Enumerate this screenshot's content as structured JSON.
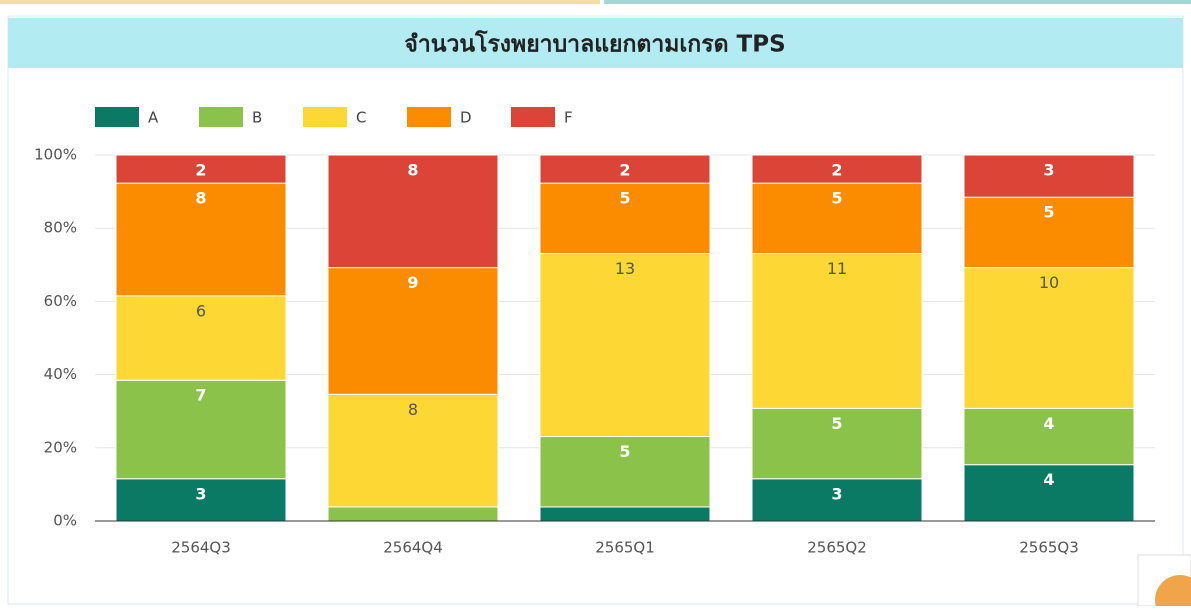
{
  "chart_data": {
    "type": "bar",
    "stacking": "percent",
    "title": "จำนวนโรงพยาบาลแยกตามเกรด TPS",
    "categories": [
      "2564Q3",
      "2564Q4",
      "2565Q1",
      "2565Q2",
      "2565Q3"
    ],
    "series": [
      {
        "name": "A",
        "color": "#0b7a64",
        "values": [
          3,
          0,
          1,
          3,
          4
        ]
      },
      {
        "name": "B",
        "color": "#8bc34a",
        "values": [
          7,
          1,
          5,
          5,
          4
        ]
      },
      {
        "name": "C",
        "color": "#fdd835",
        "values": [
          6,
          8,
          13,
          11,
          10
        ]
      },
      {
        "name": "D",
        "color": "#fb8c00",
        "values": [
          8,
          9,
          5,
          5,
          5
        ]
      },
      {
        "name": "F",
        "color": "#db4437",
        "values": [
          2,
          8,
          2,
          2,
          3
        ]
      }
    ],
    "ylim": [
      0,
      100
    ],
    "yticks": [
      {
        "value": 0,
        "label": "0%"
      },
      {
        "value": 20,
        "label": "20%"
      },
      {
        "value": 40,
        "label": "40%"
      },
      {
        "value": 60,
        "label": "60%"
      },
      {
        "value": 80,
        "label": "80%"
      },
      {
        "value": 100,
        "label": "100%"
      }
    ],
    "grid": true,
    "legend": "top"
  }
}
